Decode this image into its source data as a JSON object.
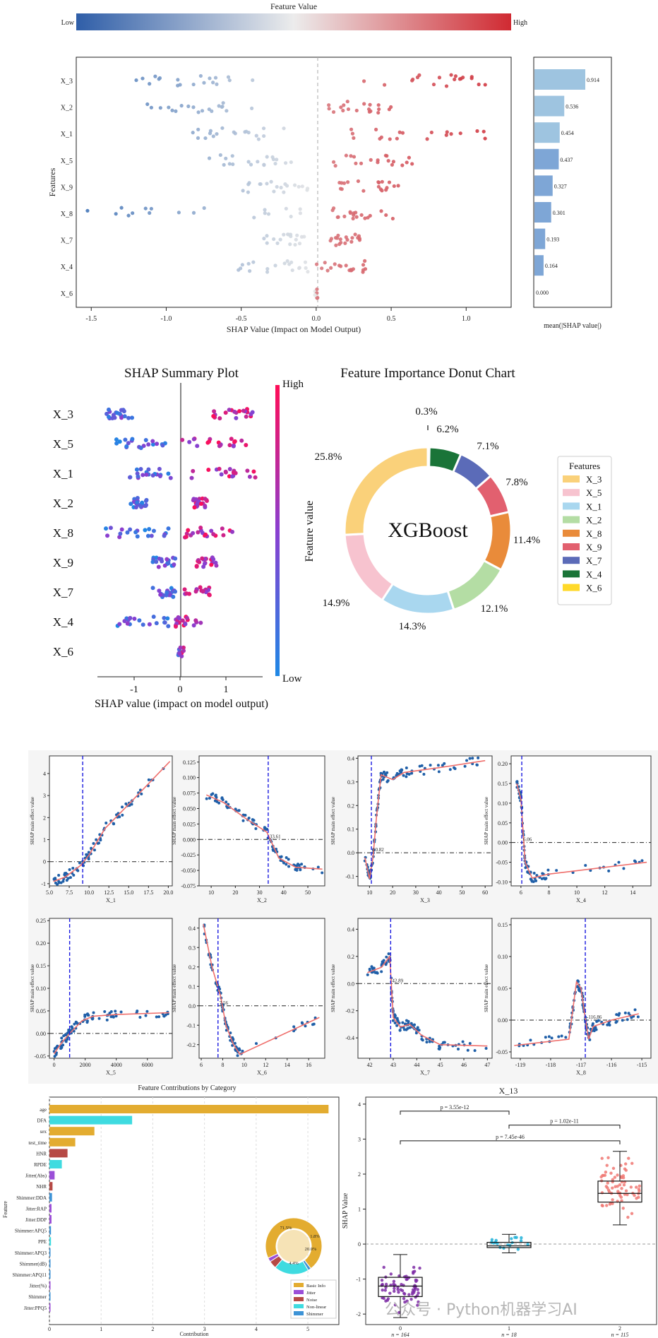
{
  "colors": {
    "low": "#3b6fb6",
    "high": "#d0303a",
    "neutral": "#e8e8e8",
    "bar": "#9ec4e0",
    "bar_dark": "#7ea6d6"
  },
  "colorbar_top": {
    "title": "Feature Value",
    "low": "Low",
    "high": "High"
  },
  "chart_data": [
    {
      "id": "shap-beeswarm-top",
      "type": "scatter",
      "xlabel": "SHAP Value (Impact on Model Output)",
      "ylabel": "Features",
      "xlim": [
        -1.6,
        1.3
      ],
      "xticks": [
        "-1.5",
        "-1.0",
        "-0.5",
        "0.0",
        "0.5",
        "1.0"
      ],
      "categories": [
        "X_3",
        "X_2",
        "X_1",
        "X_5",
        "X_9",
        "X_8",
        "X_7",
        "X_4",
        "X_6"
      ],
      "clusters": [
        {
          "feature": "X_3",
          "low_range": [
            -1.3,
            -0.4
          ],
          "high_range": [
            0.3,
            1.2
          ]
        },
        {
          "feature": "X_2",
          "low_range": [
            -1.2,
            -0.35
          ],
          "high_range": [
            0.08,
            0.5
          ]
        },
        {
          "feature": "X_1",
          "low_range": [
            -0.85,
            -0.2
          ],
          "high_range": [
            0.1,
            1.2
          ]
        },
        {
          "feature": "X_5",
          "low_range": [
            -0.75,
            -0.15
          ],
          "high_range": [
            0.1,
            0.75
          ]
        },
        {
          "feature": "X_9",
          "low_range": [
            -0.5,
            -0.05
          ],
          "high_range": [
            0.15,
            0.55
          ]
        },
        {
          "feature": "X_8",
          "low_range": [
            -1.55,
            -0.05
          ],
          "high_range": [
            0.08,
            0.55
          ]
        },
        {
          "feature": "X_7",
          "low_range": [
            -0.35,
            -0.05
          ],
          "high_range": [
            0.05,
            0.3
          ]
        },
        {
          "feature": "X_4",
          "low_range": [
            -0.6,
            -0.05
          ],
          "high_range": [
            0.0,
            0.35
          ]
        },
        {
          "feature": "X_6",
          "low_range": [
            -0.01,
            0.0
          ],
          "high_range": [
            0.0,
            0.01
          ]
        }
      ]
    },
    {
      "id": "mean-abs-shap-bar",
      "type": "bar",
      "xlabel": "mean(|SHAP value|)",
      "categories": [
        "X_3",
        "X_2",
        "X_1",
        "X_5",
        "X_9",
        "X_8",
        "X_7",
        "X_4",
        "X_6"
      ],
      "values": [
        0.914,
        0.536,
        0.454,
        0.437,
        0.327,
        0.301,
        0.193,
        0.164,
        0.0
      ],
      "value_labels": [
        "0.914",
        "0.536",
        "0.454",
        "0.437",
        "0.327",
        "0.301",
        "0.193",
        "0.164",
        "0.000"
      ]
    },
    {
      "id": "shap-summary-plot",
      "type": "scatter",
      "title": "SHAP Summary Plot",
      "xlabel": "SHAP value (impact on model output)",
      "xlim": [
        -1.8,
        1.8
      ],
      "xticks": [
        "-1",
        "0",
        "1"
      ],
      "categories": [
        "X_3",
        "X_5",
        "X_1",
        "X_2",
        "X_8",
        "X_9",
        "X_7",
        "X_4",
        "X_6"
      ],
      "colorbar_high": "High",
      "colorbar_low": "Low",
      "colorbar_label": "Feature value",
      "clusters": [
        {
          "feature": "X_3",
          "low_range": [
            -1.6,
            -1.0
          ],
          "high_range": [
            0.7,
            1.7
          ]
        },
        {
          "feature": "X_5",
          "low_range": [
            -1.4,
            -0.2
          ],
          "high_range": [
            0.0,
            1.5
          ]
        },
        {
          "feature": "X_1",
          "low_range": [
            -1.1,
            -0.2
          ],
          "high_range": [
            0.2,
            1.7
          ]
        },
        {
          "feature": "X_2",
          "low_range": [
            -1.1,
            -0.7
          ],
          "high_range": [
            0.2,
            0.6
          ]
        },
        {
          "feature": "X_8",
          "low_range": [
            -1.7,
            -0.2
          ],
          "high_range": [
            0.1,
            1.2
          ]
        },
        {
          "feature": "X_9",
          "low_range": [
            -0.6,
            -0.1
          ],
          "high_range": [
            0.35,
            0.8
          ]
        },
        {
          "feature": "X_7",
          "low_range": [
            -0.6,
            -0.1
          ],
          "high_range": [
            0.1,
            0.7
          ]
        },
        {
          "feature": "X_4",
          "low_range": [
            -1.5,
            -0.2
          ],
          "high_range": [
            -0.1,
            0.5
          ]
        },
        {
          "feature": "X_6",
          "low_range": [
            -0.05,
            0.0
          ],
          "high_range": [
            0.0,
            0.08
          ]
        }
      ]
    },
    {
      "id": "importance-donut",
      "type": "pie",
      "title": "Feature Importance Donut Chart",
      "center_label": "XGBoost",
      "legend_title": "Features",
      "categories": [
        "X_3",
        "X_5",
        "X_1",
        "X_2",
        "X_8",
        "X_9",
        "X_7",
        "X_4",
        "X_6"
      ],
      "values": [
        25.8,
        14.9,
        14.3,
        12.1,
        11.4,
        7.8,
        7.1,
        6.2,
        0.3
      ],
      "labels": [
        "25.8%",
        "14.9%",
        "14.3%",
        "12.1%",
        "11.4%",
        "7.8%",
        "7.1%",
        "6.2%",
        "0.3%"
      ],
      "slice_colors": [
        "#fad17a",
        "#f7c3cf",
        "#a9d7ef",
        "#b4dda4",
        "#e98b3a",
        "#e2606f",
        "#5b6bb8",
        "#1a7438",
        "#ffd92a"
      ]
    },
    {
      "id": "dependence-plots",
      "type": "scatter",
      "ylabel": "SHAP main effect value",
      "panels": [
        {
          "xlabel": "X_1",
          "xlim": [
            5,
            20.5
          ],
          "ylim": [
            -1.1,
            4.8
          ],
          "xticks": [
            "5.0",
            "7.5",
            "10.0",
            "12.5",
            "15.0",
            "17.5",
            "20.0"
          ],
          "yticks": [
            "-1",
            "0",
            "1",
            "2",
            "3",
            "4"
          ],
          "threshold_x": 9.2,
          "threshold_label": "",
          "curve": [
            [
              5.5,
              -0.9
            ],
            [
              7,
              -0.7
            ],
            [
              9,
              -0.15
            ],
            [
              10,
              0.3
            ],
            [
              12,
              1.5
            ],
            [
              15,
              2.6
            ],
            [
              20.2,
              4.55
            ]
          ]
        },
        {
          "xlabel": "X_2",
          "xlim": [
            5,
            57
          ],
          "ylim": [
            -0.075,
            0.135
          ],
          "xticks": [
            "10",
            "20",
            "30",
            "40",
            "50"
          ],
          "yticks": [
            "-0.075",
            "-0.050",
            "-0.025",
            "0.000",
            "0.025",
            "0.050",
            "0.075",
            "0.100",
            "0.125"
          ],
          "threshold_x": 33.6,
          "threshold_label": "33.61",
          "curve": [
            [
              8,
              0.072
            ],
            [
              15,
              0.06
            ],
            [
              25,
              0.032
            ],
            [
              33,
              0.012
            ],
            [
              38,
              -0.03
            ],
            [
              45,
              -0.045
            ],
            [
              56,
              -0.048
            ]
          ]
        },
        {
          "xlabel": "X_3",
          "xlim": [
            5,
            63
          ],
          "ylim": [
            -0.14,
            0.41
          ],
          "xticks": [
            "10",
            "20",
            "30",
            "40",
            "50",
            "60"
          ],
          "yticks": [
            "-0.1",
            "0.0",
            "0.1",
            "0.2",
            "0.3",
            "0.4"
          ],
          "threshold_x": 10.8,
          "threshold_label": "10.82",
          "curve": [
            [
              8,
              -0.02
            ],
            [
              10,
              -0.11
            ],
            [
              11.5,
              -0.02
            ],
            [
              13,
              0.15
            ],
            [
              15,
              0.33
            ],
            [
              20,
              0.31
            ],
            [
              25,
              0.34
            ],
            [
              40,
              0.36
            ],
            [
              60,
              0.39
            ]
          ]
        },
        {
          "xlabel": "X_4",
          "xlim": [
            5.3,
            15.3
          ],
          "ylim": [
            -0.11,
            0.22
          ],
          "xticks": [
            "6",
            "8",
            "10",
            "12",
            "14"
          ],
          "yticks": [
            "-0.10",
            "-0.05",
            "0.00",
            "0.05",
            "0.10",
            "0.15",
            "0.20"
          ],
          "threshold_x": 6.06,
          "threshold_label": "6.06",
          "curve": [
            [
              5.7,
              0.15
            ],
            [
              6.0,
              0.11
            ],
            [
              6.3,
              -0.05
            ],
            [
              6.8,
              -0.09
            ],
            [
              8,
              -0.08
            ],
            [
              15,
              -0.05
            ]
          ]
        },
        {
          "xlabel": "X_5",
          "xlim": [
            -300,
            7600
          ],
          "ylim": [
            -0.055,
            0.255
          ],
          "xticks": [
            "0",
            "2000",
            "4000",
            "6000"
          ],
          "yticks": [
            "-0.05",
            "0.00",
            "0.05",
            "0.10",
            "0.15",
            "0.20",
            "0.25"
          ],
          "threshold_x": 1000,
          "threshold_label": "",
          "curve": [
            [
              0,
              -0.045
            ],
            [
              500,
              -0.02
            ],
            [
              1000,
              0.0
            ],
            [
              1800,
              0.028
            ],
            [
              2500,
              0.038
            ],
            [
              4000,
              0.042
            ],
            [
              7400,
              0.046
            ]
          ]
        },
        {
          "xlabel": "X_6",
          "xlim": [
            5.8,
            17.5
          ],
          "ylim": [
            -0.27,
            0.45
          ],
          "xticks": [
            "6",
            "8",
            "10",
            "12",
            "14",
            "16"
          ],
          "yticks": [
            "-0.2",
            "-0.1",
            "0.0",
            "0.1",
            "0.2",
            "0.3",
            "0.4"
          ],
          "threshold_x": 7.56,
          "threshold_label": "7.56",
          "curve": [
            [
              6.2,
              0.42
            ],
            [
              7,
              0.2
            ],
            [
              7.8,
              0.05
            ],
            [
              8.3,
              -0.1
            ],
            [
              9,
              -0.2
            ],
            [
              9.6,
              -0.25
            ],
            [
              17,
              -0.06
            ]
          ]
        },
        {
          "xlabel": "X_7",
          "xlim": [
            41.5,
            47.2
          ],
          "ylim": [
            -0.55,
            0.48
          ],
          "xticks": [
            "42",
            "43",
            "44",
            "45",
            "46",
            "47"
          ],
          "yticks": [
            "-0.4",
            "-0.2",
            "0.0",
            "0.2",
            "0.4"
          ],
          "threshold_x": 42.89,
          "threshold_label": "42.89",
          "curve": [
            [
              41.9,
              0.08
            ],
            [
              42.5,
              0.12
            ],
            [
              42.85,
              0.2
            ],
            [
              43.0,
              -0.25
            ],
            [
              43.3,
              -0.32
            ],
            [
              43.7,
              -0.3
            ],
            [
              44.2,
              -0.38
            ],
            [
              45,
              -0.45
            ],
            [
              47,
              -0.46
            ]
          ]
        },
        {
          "xlabel": "X_8",
          "xlim": [
            -119.3,
            -114.7
          ],
          "ylim": [
            -0.06,
            0.16
          ],
          "xticks": [
            "-119",
            "-118",
            "-117",
            "-116",
            "-115"
          ],
          "yticks": [
            "-0.05",
            "0.00",
            "0.05",
            "0.10",
            "0.15"
          ],
          "threshold_x": -116.86,
          "threshold_label": "-116.86",
          "curve": [
            [
              -119.2,
              -0.04
            ],
            [
              -117.4,
              -0.03
            ],
            [
              -117.15,
              0.06
            ],
            [
              -117.0,
              0.05
            ],
            [
              -116.9,
              0.015
            ],
            [
              -116.75,
              -0.03
            ],
            [
              -116.6,
              -0.01
            ],
            [
              -116,
              0.0
            ],
            [
              -115.1,
              0.01
            ]
          ]
        }
      ]
    },
    {
      "id": "feature-contributions",
      "type": "bar",
      "title": "Feature Contributions by Category",
      "xlabel": "Contribution",
      "ylabel": "Feature",
      "xlim": [
        0,
        5.6
      ],
      "xticks": [
        "0",
        "1",
        "2",
        "3",
        "4",
        "5"
      ],
      "categories": [
        "age",
        "DFA",
        "sex",
        "test_time",
        "HNR",
        "RPDE",
        "Jitter(Abs)",
        "NHR",
        "Shimmer:DDA",
        "Jitter:RAP",
        "Jitter:DDP",
        "Shimmer:APQ5",
        "PPE",
        "Shimmer:APQ3",
        "Shimmer(dB)",
        "Shimmer:APQ11",
        "Jitter(%)",
        "Shimmer",
        "Jitter:PPQ5"
      ],
      "values": [
        5.4,
        1.6,
        0.87,
        0.5,
        0.35,
        0.24,
        0.1,
        0.06,
        0.05,
        0.04,
        0.04,
        0.03,
        0.03,
        0.02,
        0.02,
        0.02,
        0.02,
        0.02,
        0.01
      ],
      "bar_groups": [
        "Basic Info",
        "Non-linear",
        "Basic Info",
        "Basic Info",
        "Noise",
        "Non-linear",
        "Jitter",
        "Noise",
        "Shimmer",
        "Jitter",
        "Jitter",
        "Shimmer",
        "Non-linear",
        "Shimmer",
        "Shimmer",
        "Shimmer",
        "Jitter",
        "Shimmer",
        "Jitter"
      ],
      "legend": [
        "Basic Info",
        "Jitter",
        "Noise",
        "Non-linear",
        "Shimmer"
      ],
      "group_colors": {
        "Basic Info": "#e3ac30",
        "Jitter": "#9b4fd8",
        "Noise": "#b64a45",
        "Non-linear": "#3fdbe0",
        "Shimmer": "#3d93d6"
      },
      "inset_donut": {
        "values": [
          71.5,
          1.8,
          20.0,
          4.4,
          2.3
        ],
        "labels": [
          "71.5%",
          "1.8%",
          "20.0%",
          "4.4%",
          ""
        ]
      }
    },
    {
      "id": "x13-boxplot",
      "type": "scatter",
      "title": "X_13",
      "ylabel": "SHAP Value",
      "ylim": [
        -2.3,
        4.2
      ],
      "yticks": [
        "-2",
        "-1",
        "0",
        "1",
        "2",
        "3",
        "4"
      ],
      "categories": [
        "0",
        "1",
        "2"
      ],
      "box_colors": [
        "#7d2aa4",
        "#1fb0d8",
        "#f07873"
      ],
      "boxes": [
        {
          "median": -1.2,
          "q1": -1.5,
          "q3": -0.95,
          "whisker_lo": -2.1,
          "whisker_hi": -0.3
        },
        {
          "median": -0.05,
          "q1": -0.1,
          "q3": 0.05,
          "whisker_lo": -0.25,
          "whisker_hi": 0.28
        },
        {
          "median": 1.45,
          "q1": 1.2,
          "q3": 1.8,
          "whisker_lo": 0.55,
          "whisker_hi": 2.65
        }
      ],
      "counts": [
        "n = 164",
        "n = 18",
        "n = 115"
      ],
      "pvalues": [
        {
          "label": "p = 3.55e-12",
          "from": 0,
          "to": 1,
          "y": 3.8
        },
        {
          "label": "p = 1.02e-11",
          "from": 1,
          "to": 2,
          "y": 3.4
        },
        {
          "label": "p = 7.45e-46",
          "from": 0,
          "to": 2,
          "y": 2.95
        }
      ]
    }
  ],
  "watermark": "公众号 · Python机器学习AI"
}
